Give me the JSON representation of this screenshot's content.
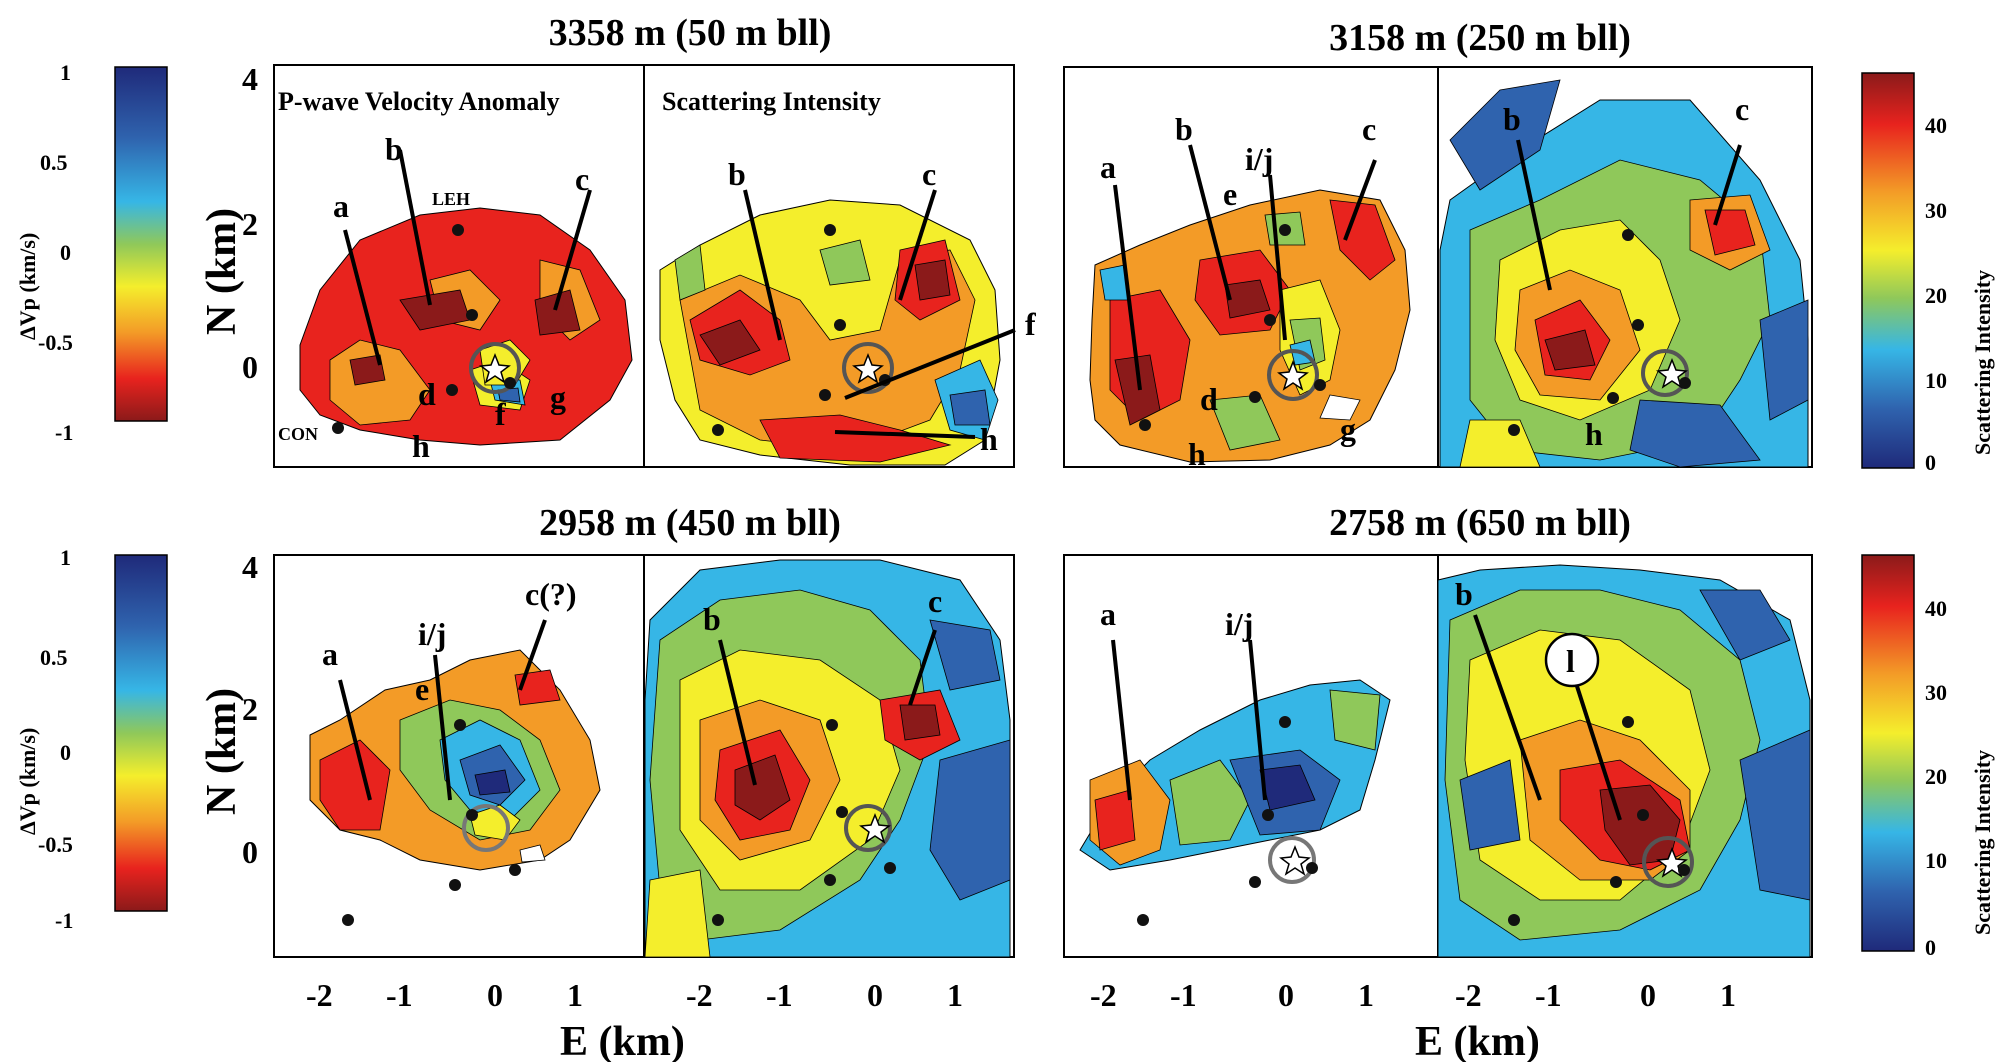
{
  "figure": {
    "titles": [
      "3358 m (50 m bll)",
      "3158 m (250 m bll)",
      "2958 m (450 m bll)",
      "2758 m (650 m bll)"
    ],
    "panel_labels": {
      "velocity": "P-wave Velocity Anomaly",
      "scattering": "Scattering Intensity"
    },
    "stations": {
      "leh": "LEH",
      "con": "CON"
    },
    "axis": {
      "n_label": "N (km)",
      "e_label": "E (km)",
      "y_ticks": [
        "4",
        "2",
        "0"
      ],
      "x_ticks": [
        "-2",
        "-1",
        "0",
        "1"
      ]
    },
    "colorbar_left": {
      "label": "ΔVp (km/s)",
      "ticks": [
        "1",
        "0.5",
        "0",
        "-0.5",
        "-1"
      ]
    },
    "colorbar_right": {
      "label": "Scattering Intensity",
      "ticks": [
        "40",
        "30",
        "20",
        "10",
        "0"
      ]
    },
    "labels": {
      "p1v": [
        "a",
        "b",
        "c",
        "d",
        "f",
        "g",
        "h"
      ],
      "p1s": [
        "b",
        "c",
        "f",
        "h"
      ],
      "p2v": [
        "a",
        "b",
        "i/j",
        "e",
        "c",
        "d",
        "h",
        "g"
      ],
      "p2s": [
        "b",
        "c",
        "h"
      ],
      "p3v": [
        "a",
        "i/j",
        "c(?)",
        "e"
      ],
      "p3s": [
        "b",
        "c"
      ],
      "p4v": [
        "a",
        "i/j"
      ],
      "p4s": [
        "b",
        "l"
      ]
    }
  },
  "colors": {
    "dark_red": "#8b1a1a",
    "red": "#e8231e",
    "orange": "#f39b27",
    "yellow": "#f4ee2c",
    "green": "#8fc85a",
    "cyan": "#36b6e6",
    "blue": "#2f63ae",
    "navy": "#1f2a7a"
  }
}
